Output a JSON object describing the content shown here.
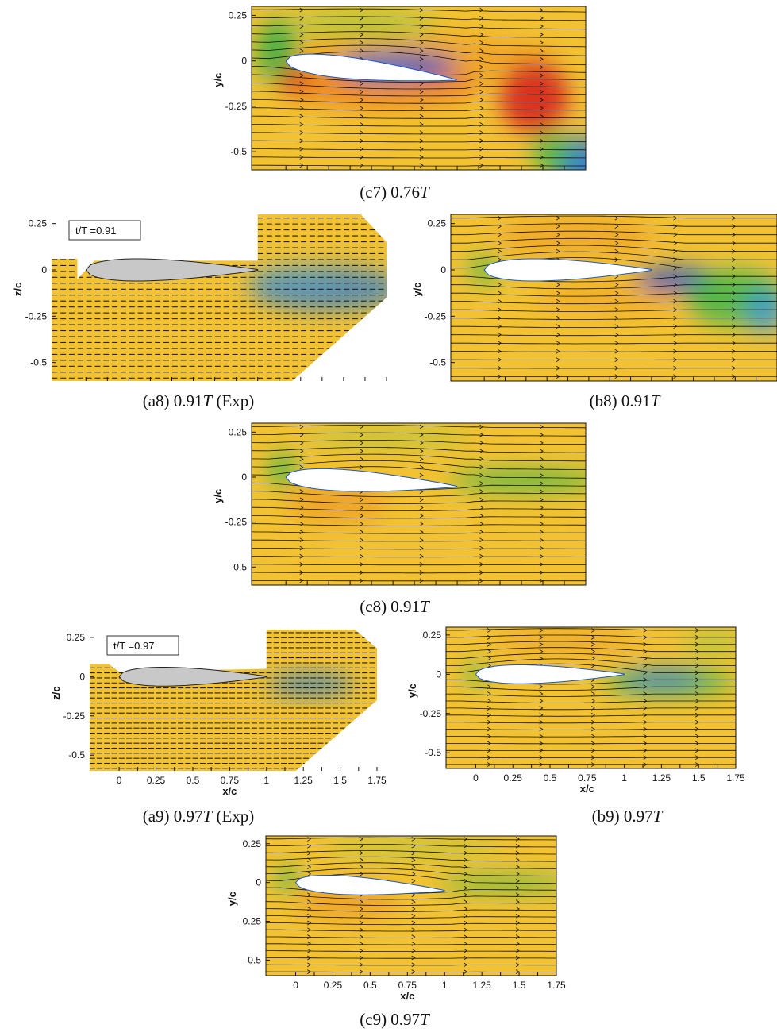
{
  "panels": [
    {
      "id": "c7",
      "kind": "sim",
      "caption": {
        "prefix": "(c7) 0.76",
        "T": "T",
        "suffix": ""
      },
      "ylabel": "y/c",
      "xlabel": "",
      "yticks": [
        "0.25",
        "0",
        "-0.25",
        "-0.5"
      ],
      "xticks": [],
      "bg": "#f2c232",
      "blobs": [
        {
          "shape": "ellipse",
          "x": 0.8,
          "y": 0.02,
          "rx": 0.8,
          "ry": 0.12,
          "color": "#ef9a22",
          "op": 0.7
        },
        {
          "shape": "ellipse",
          "x": -0.05,
          "y": 0.05,
          "rx": 0.12,
          "ry": 0.18,
          "color": "#2fae48",
          "op": 0.85
        },
        {
          "shape": "ellipse",
          "x": 0.45,
          "y": 0.2,
          "rx": 0.45,
          "ry": 0.08,
          "color": "#92c63f",
          "op": 0.6
        },
        {
          "shape": "ellipse",
          "x": 0.55,
          "y": -0.14,
          "rx": 0.6,
          "ry": 0.12,
          "color": "#ee8122",
          "op": 0.85
        },
        {
          "shape": "ellipse",
          "x": 0.05,
          "y": -0.1,
          "rx": 0.08,
          "ry": 0.06,
          "color": "#d42020",
          "op": 0.9
        },
        {
          "shape": "ellipse",
          "x": 0.65,
          "y": -0.03,
          "rx": 0.35,
          "ry": 0.07,
          "color": "#1a56c8",
          "op": 0.95
        },
        {
          "shape": "ellipse",
          "x": 0.55,
          "y": -0.07,
          "rx": 0.2,
          "ry": 0.04,
          "color": "#2a9ad8",
          "op": 0.6
        },
        {
          "shape": "ellipse",
          "x": 1.45,
          "y": -0.2,
          "rx": 0.2,
          "ry": 0.2,
          "color": "#d92a1e",
          "op": 0.95
        },
        {
          "shape": "ellipse",
          "x": 1.72,
          "y": -0.58,
          "rx": 0.15,
          "ry": 0.16,
          "color": "#2a7ad8",
          "op": 0.9
        },
        {
          "shape": "ellipse",
          "x": 1.55,
          "y": -0.5,
          "rx": 0.12,
          "ry": 0.12,
          "color": "#3fb64a",
          "op": 0.8
        }
      ],
      "chord": 1.0,
      "aoa": -6,
      "stream": "sim"
    },
    {
      "id": "a8",
      "kind": "exp",
      "caption": {
        "prefix": "(a8) 0.91",
        "T": "T",
        "suffix": " (Exp)"
      },
      "ylabel": "z/c",
      "xlabel": "",
      "yticks": [
        "0.25",
        "0",
        "-0.25",
        "-0.5"
      ],
      "xticks": [],
      "time_label": "t/T =0.91",
      "wake": [
        {
          "x": 1.4,
          "y": -0.1,
          "rx": 0.45,
          "ry": 0.12,
          "color": "#2f7fd0",
          "op": 0.75
        },
        {
          "x": 1.2,
          "y": -0.05,
          "rx": 0.25,
          "ry": 0.07,
          "color": "#5aa0c0",
          "op": 0.6
        }
      ]
    },
    {
      "id": "b8",
      "kind": "sim",
      "caption": {
        "prefix": "(b8) 0.91",
        "T": "T",
        "suffix": ""
      },
      "ylabel": "y/c",
      "xlabel": "",
      "yticks": [
        "0.25",
        "0",
        "-0.25",
        "-0.5"
      ],
      "xticks": [],
      "bg": "#f2c232",
      "blobs": [
        {
          "shape": "ellipse",
          "x": 0.55,
          "y": 0.18,
          "rx": 0.5,
          "ry": 0.1,
          "color": "#ee9a25",
          "op": 0.6
        },
        {
          "shape": "ellipse",
          "x": 0.0,
          "y": 0.0,
          "rx": 0.1,
          "ry": 0.08,
          "color": "#5ab84a",
          "op": 0.8
        },
        {
          "shape": "ellipse",
          "x": 0.8,
          "y": -0.15,
          "rx": 0.5,
          "ry": 0.08,
          "color": "#ee9a25",
          "op": 0.5
        },
        {
          "shape": "ellipse",
          "x": 1.15,
          "y": -0.05,
          "rx": 0.25,
          "ry": 0.06,
          "color": "#1a56c8",
          "op": 0.95
        },
        {
          "shape": "ellipse",
          "x": 1.5,
          "y": -0.15,
          "rx": 0.3,
          "ry": 0.15,
          "color": "#3fb64a",
          "op": 0.85
        },
        {
          "shape": "ellipse",
          "x": 1.68,
          "y": -0.22,
          "rx": 0.12,
          "ry": 0.12,
          "color": "#3a9ae0",
          "op": 0.8
        }
      ],
      "chord": 1.0,
      "aoa": 0,
      "stream": "sim"
    },
    {
      "id": "c8",
      "kind": "sim",
      "caption": {
        "prefix": "(c8) 0.91",
        "T": "T",
        "suffix": ""
      },
      "ylabel": "y/c",
      "xlabel": "",
      "yticks": [
        "0.25",
        "0",
        "-0.25",
        "-0.5"
      ],
      "xticks": [],
      "bg": "#f2c232",
      "blobs": [
        {
          "shape": "ellipse",
          "x": 0.3,
          "y": -0.14,
          "rx": 0.3,
          "ry": 0.12,
          "color": "#ee9a25",
          "op": 0.7
        },
        {
          "shape": "ellipse",
          "x": -0.02,
          "y": 0.04,
          "rx": 0.08,
          "ry": 0.1,
          "color": "#3fb64a",
          "op": 0.85
        },
        {
          "shape": "ellipse",
          "x": 1.4,
          "y": -0.02,
          "rx": 0.45,
          "ry": 0.05,
          "color": "#3fb64a",
          "op": 0.9
        },
        {
          "shape": "ellipse",
          "x": 0.6,
          "y": 0.22,
          "rx": 0.5,
          "ry": 0.06,
          "color": "#9ac63f",
          "op": 0.5
        }
      ],
      "chord": 1.0,
      "aoa": -3,
      "stream": "sim"
    },
    {
      "id": "a9",
      "kind": "exp",
      "caption": {
        "prefix": "(a9) 0.97",
        "T": "T",
        "suffix": " (Exp)"
      },
      "ylabel": "z/c",
      "xlabel": "x/c",
      "yticks": [
        "0.25",
        "0",
        "-0.25",
        "-0.5"
      ],
      "xticks": [
        "0",
        "0.25",
        "0.5",
        "0.75",
        "1",
        "1.25",
        "1.5",
        "1.75"
      ],
      "time_label": "t/T =0.97",
      "wake": [
        {
          "x": 1.3,
          "y": -0.05,
          "rx": 0.3,
          "ry": 0.07,
          "color": "#2f7fd0",
          "op": 0.75
        }
      ]
    },
    {
      "id": "b9",
      "kind": "sim",
      "caption": {
        "prefix": "(b9) 0.97",
        "T": "T",
        "suffix": ""
      },
      "ylabel": "y/c",
      "xlabel": "x/c",
      "yticks": [
        "0.25",
        "0",
        "-0.25",
        "-0.5"
      ],
      "xticks": [
        "0",
        "0.25",
        "0.5",
        "0.75",
        "1",
        "1.25",
        "1.5",
        "1.75"
      ],
      "bg": "#f2c232",
      "blobs": [
        {
          "shape": "ellipse",
          "x": 0.6,
          "y": 0.2,
          "rx": 0.5,
          "ry": 0.08,
          "color": "#ee9a25",
          "op": 0.55
        },
        {
          "shape": "ellipse",
          "x": 0.0,
          "y": 0.0,
          "rx": 0.08,
          "ry": 0.08,
          "color": "#5ab84a",
          "op": 0.75
        },
        {
          "shape": "ellipse",
          "x": 1.3,
          "y": -0.05,
          "rx": 0.45,
          "ry": 0.08,
          "color": "#3fb64a",
          "op": 0.85
        },
        {
          "shape": "ellipse",
          "x": 1.25,
          "y": -0.03,
          "rx": 0.28,
          "ry": 0.05,
          "color": "#2a7ad8",
          "op": 0.9
        },
        {
          "shape": "ellipse",
          "x": 1.6,
          "y": 0.2,
          "rx": 0.2,
          "ry": 0.08,
          "color": "#9ac63f",
          "op": 0.6
        }
      ],
      "chord": 1.0,
      "aoa": 0,
      "stream": "sim"
    },
    {
      "id": "c9",
      "kind": "sim",
      "caption": {
        "prefix": "(c9) 0.97",
        "T": "T",
        "suffix": ""
      },
      "ylabel": "y/c",
      "xlabel": "x/c",
      "yticks": [
        "0.25",
        "0",
        "-0.25",
        "-0.5"
      ],
      "xticks": [
        "0",
        "0.25",
        "0.5",
        "0.75",
        "1",
        "1.25",
        "1.5",
        "1.75"
      ],
      "bg": "#f2c232",
      "blobs": [
        {
          "shape": "ellipse",
          "x": 0.35,
          "y": -0.12,
          "rx": 0.35,
          "ry": 0.12,
          "color": "#ee9a25",
          "op": 0.7
        },
        {
          "shape": "ellipse",
          "x": -0.05,
          "y": 0.02,
          "rx": 0.08,
          "ry": 0.08,
          "color": "#3fb64a",
          "op": 0.85
        },
        {
          "shape": "ellipse",
          "x": 1.4,
          "y": -0.01,
          "rx": 0.45,
          "ry": 0.04,
          "color": "#3fb64a",
          "op": 0.9
        },
        {
          "shape": "ellipse",
          "x": 0.8,
          "y": 0.22,
          "rx": 0.6,
          "ry": 0.06,
          "color": "#9ac63f",
          "op": 0.55
        }
      ],
      "chord": 1.0,
      "aoa": -3,
      "stream": "sim"
    }
  ]
}
